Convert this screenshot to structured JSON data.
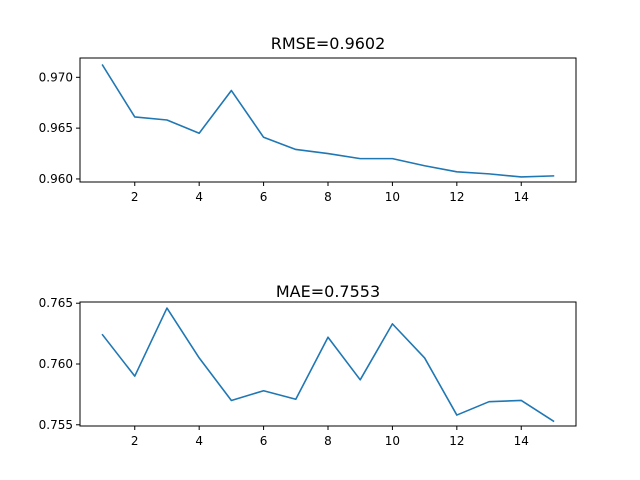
{
  "chart_data": [
    {
      "type": "line",
      "title": "RMSE=0.9602",
      "x": [
        1,
        2,
        3,
        4,
        5,
        6,
        7,
        8,
        9,
        10,
        11,
        12,
        13,
        14,
        15
      ],
      "series": [
        {
          "values": [
            0.9712,
            0.9661,
            0.9658,
            0.9645,
            0.9687,
            0.9641,
            0.9629,
            0.9625,
            0.962,
            0.962,
            0.9613,
            0.9607,
            0.9605,
            0.9602,
            0.9603
          ],
          "color": "#1f77b4"
        }
      ],
      "xlim": [
        0.3,
        15.7
      ],
      "ylim": [
        0.9597,
        0.9719
      ],
      "xticks": [
        2,
        4,
        6,
        8,
        10,
        12,
        14
      ],
      "yticks": [
        0.96,
        0.965,
        0.97
      ],
      "xtick_labels": [
        "2",
        "4",
        "6",
        "8",
        "10",
        "12",
        "14"
      ],
      "ytick_labels": [
        "0.960",
        "0.965",
        "0.970"
      ],
      "grid": false
    },
    {
      "type": "line",
      "title": "MAE=0.7553",
      "x": [
        1,
        2,
        3,
        4,
        5,
        6,
        7,
        8,
        9,
        10,
        11,
        12,
        13,
        14,
        15
      ],
      "series": [
        {
          "values": [
            0.7624,
            0.759,
            0.7646,
            0.7605,
            0.757,
            0.7578,
            0.7571,
            0.7622,
            0.7587,
            0.7633,
            0.7605,
            0.7558,
            0.7569,
            0.757,
            0.7553
          ],
          "color": "#1f77b4"
        }
      ],
      "xlim": [
        0.3,
        15.7
      ],
      "ylim": [
        0.7549,
        0.7651
      ],
      "xticks": [
        2,
        4,
        6,
        8,
        10,
        12,
        14
      ],
      "yticks": [
        0.755,
        0.76,
        0.765
      ],
      "xtick_labels": [
        "2",
        "4",
        "6",
        "8",
        "10",
        "12",
        "14"
      ],
      "ytick_labels": [
        "0.755",
        "0.760",
        "0.765"
      ],
      "grid": false
    }
  ]
}
